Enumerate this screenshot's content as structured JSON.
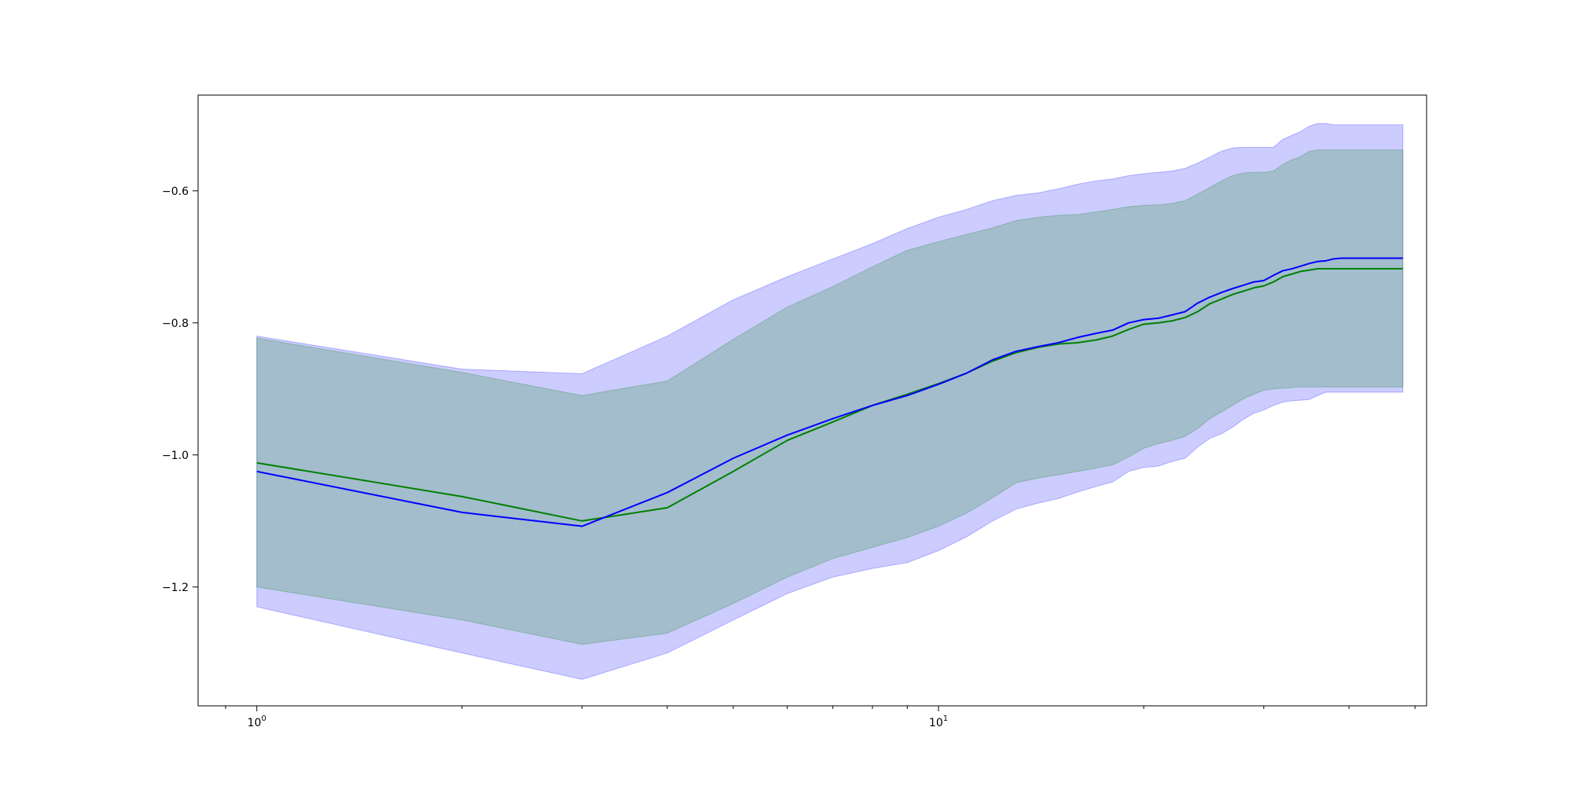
{
  "chart_data": {
    "type": "line",
    "title": "",
    "xlabel": "",
    "ylabel": "",
    "xscale": "log",
    "xlim": [
      0.82,
      52
    ],
    "ylim": [
      -1.38,
      -0.455
    ],
    "xticks": [
      {
        "value": 1,
        "base": "10",
        "exp": "0"
      },
      {
        "value": 10,
        "base": "10",
        "exp": "1"
      }
    ],
    "yticks": [
      {
        "value": -0.6,
        "label": "−0.6"
      },
      {
        "value": -0.8,
        "label": "−0.8"
      },
      {
        "value": -1.0,
        "label": "−1.0"
      },
      {
        "value": -1.2,
        "label": "−1.2"
      }
    ],
    "grid": false,
    "legend": "none",
    "x": [
      1,
      2,
      3,
      4,
      5,
      6,
      7,
      8,
      9,
      10,
      11,
      12,
      13,
      14,
      15,
      16,
      17,
      18,
      19,
      20,
      21,
      22,
      23,
      24,
      25,
      26,
      27,
      28,
      29,
      30,
      31,
      32,
      33,
      34,
      35,
      36,
      37,
      38,
      39,
      40,
      41,
      42,
      43,
      44,
      45,
      46,
      47,
      48
    ],
    "series": [
      {
        "color": "#0000ff",
        "values": [
          -1.025,
          -1.087,
          -1.108,
          -1.057,
          -1.005,
          -0.97,
          -0.945,
          -0.925,
          -0.91,
          -0.893,
          -0.876,
          -0.856,
          -0.843,
          -0.836,
          -0.83,
          -0.822,
          -0.816,
          -0.811,
          -0.8,
          -0.795,
          -0.793,
          -0.788,
          -0.783,
          -0.77,
          -0.761,
          -0.754,
          -0.748,
          -0.743,
          -0.738,
          -0.736,
          -0.728,
          -0.721,
          -0.718,
          -0.714,
          -0.71,
          -0.707,
          -0.706,
          -0.703,
          -0.702,
          -0.702,
          -0.702,
          -0.702,
          -0.702,
          -0.702,
          -0.702,
          -0.702,
          -0.702,
          -0.702
        ],
        "band_outer_upper": [
          -0.82,
          -0.87,
          -0.877,
          -0.82,
          -0.765,
          -0.73,
          -0.703,
          -0.68,
          -0.657,
          -0.64,
          -0.628,
          -0.615,
          -0.607,
          -0.603,
          -0.597,
          -0.59,
          -0.585,
          -0.582,
          -0.577,
          -0.574,
          -0.572,
          -0.57,
          -0.566,
          -0.558,
          -0.549,
          -0.54,
          -0.535,
          -0.534,
          -0.534,
          -0.534,
          -0.534,
          -0.522,
          -0.516,
          -0.51,
          -0.502,
          -0.498,
          -0.498,
          -0.5,
          -0.5,
          -0.5,
          -0.5,
          -0.5,
          -0.5,
          -0.5,
          -0.5,
          -0.5,
          -0.5,
          -0.5
        ],
        "band_outer_lower": [
          -1.23,
          -1.3,
          -1.34,
          -1.3,
          -1.25,
          -1.21,
          -1.185,
          -1.172,
          -1.163,
          -1.145,
          -1.124,
          -1.1,
          -1.082,
          -1.073,
          -1.066,
          -1.056,
          -1.048,
          -1.041,
          -1.025,
          -1.019,
          -1.017,
          -1.01,
          -1.005,
          -0.988,
          -0.975,
          -0.968,
          -0.958,
          -0.946,
          -0.937,
          -0.932,
          -0.925,
          -0.92,
          -0.918,
          -0.917,
          -0.916,
          -0.91,
          -0.905,
          -0.905,
          -0.905,
          -0.905,
          -0.905,
          -0.905,
          -0.905,
          -0.905,
          -0.905,
          -0.905,
          -0.905,
          -0.905
        ]
      },
      {
        "color": "#008000",
        "values": [
          -1.012,
          -1.063,
          -1.1,
          -1.08,
          -1.025,
          -0.978,
          -0.95,
          -0.925,
          -0.908,
          -0.892,
          -0.876,
          -0.858,
          -0.845,
          -0.837,
          -0.832,
          -0.83,
          -0.826,
          -0.82,
          -0.81,
          -0.802,
          -0.8,
          -0.797,
          -0.792,
          -0.783,
          -0.771,
          -0.764,
          -0.757,
          -0.752,
          -0.747,
          -0.744,
          -0.738,
          -0.73,
          -0.726,
          -0.722,
          -0.72,
          -0.718,
          -0.718,
          -0.718,
          -0.718,
          -0.718,
          -0.718,
          -0.718,
          -0.718,
          -0.718,
          -0.718,
          -0.718,
          -0.718,
          -0.718
        ],
        "band_inner_upper": [
          -0.823,
          -0.875,
          -0.91,
          -0.888,
          -0.825,
          -0.776,
          -0.745,
          -0.715,
          -0.69,
          -0.677,
          -0.666,
          -0.656,
          -0.645,
          -0.64,
          -0.637,
          -0.636,
          -0.632,
          -0.628,
          -0.624,
          -0.622,
          -0.621,
          -0.619,
          -0.615,
          -0.605,
          -0.595,
          -0.585,
          -0.577,
          -0.573,
          -0.572,
          -0.572,
          -0.57,
          -0.56,
          -0.553,
          -0.548,
          -0.54,
          -0.538,
          -0.538,
          -0.538,
          -0.538,
          -0.538,
          -0.538,
          -0.538,
          -0.538,
          -0.538,
          -0.538,
          -0.538,
          -0.538,
          -0.538
        ],
        "band_inner_lower": [
          -1.2,
          -1.25,
          -1.287,
          -1.27,
          -1.225,
          -1.185,
          -1.157,
          -1.14,
          -1.125,
          -1.108,
          -1.088,
          -1.065,
          -1.042,
          -1.035,
          -1.03,
          -1.025,
          -1.02,
          -1.015,
          -1.003,
          -0.99,
          -0.983,
          -0.978,
          -0.972,
          -0.96,
          -0.945,
          -0.935,
          -0.925,
          -0.915,
          -0.908,
          -0.902,
          -0.9,
          -0.899,
          -0.898,
          -0.897,
          -0.897,
          -0.897,
          -0.897,
          -0.897,
          -0.897,
          -0.897,
          -0.897,
          -0.897,
          -0.897,
          -0.897,
          -0.897,
          -0.897,
          -0.897,
          -0.897
        ]
      }
    ]
  },
  "colors": {
    "outer_band": "#0000ff",
    "outer_band_opacity": 0.2,
    "inner_band": "#008000",
    "inner_band_opacity": 0.2
  }
}
